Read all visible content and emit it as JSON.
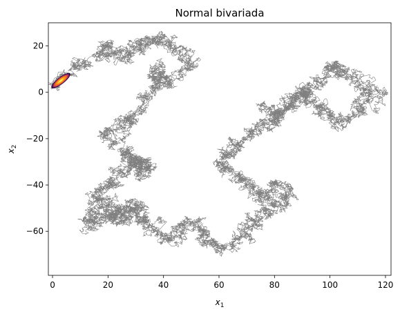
{
  "chart_data": {
    "type": "line",
    "title": "Normal bivariada",
    "xlabel": {
      "main": "x",
      "subscript": "1"
    },
    "ylabel": {
      "main": "x",
      "subscript": "2"
    },
    "xlim": [
      -1.5,
      122
    ],
    "ylim": [
      -79,
      30
    ],
    "xticks": [
      0,
      20,
      40,
      60,
      80,
      100,
      120
    ],
    "yticks": [
      20,
      0,
      -20,
      -40,
      -60
    ],
    "xtick_labels": [
      "0",
      "20",
      "40",
      "60",
      "80",
      "100",
      "120"
    ],
    "ytick_labels": [
      "20",
      "0",
      "−20",
      "−40",
      "−60"
    ],
    "grid": false,
    "line_color": "#808080",
    "series": [
      {
        "description_free": true,
        "x": [
          0,
          2,
          4,
          7,
          9,
          12,
          16,
          18,
          20,
          21,
          23,
          25,
          26,
          28,
          30,
          32,
          33,
          36,
          38,
          40,
          42,
          44,
          46,
          48,
          50,
          48,
          44,
          40,
          36,
          37,
          40,
          41,
          39,
          37,
          35,
          33,
          30,
          28,
          27,
          25,
          23,
          22,
          21,
          23,
          25,
          27,
          28,
          29,
          30,
          32,
          33,
          35,
          34,
          33,
          31,
          29,
          27,
          25,
          24,
          22,
          20,
          18,
          16,
          18,
          20,
          22,
          24,
          25,
          24,
          22,
          20,
          18,
          16,
          14,
          12,
          15,
          18,
          21,
          24,
          26,
          28,
          30,
          32,
          31,
          30,
          32,
          34,
          36,
          38,
          40,
          42,
          44,
          46,
          48,
          50,
          52,
          54,
          56,
          58,
          60,
          62,
          64,
          66,
          68,
          70,
          72,
          74,
          76,
          78,
          80,
          82,
          84,
          86,
          84,
          82,
          80,
          78,
          76,
          74,
          72,
          70,
          68,
          66,
          64,
          62,
          60,
          62,
          64,
          66,
          68,
          70,
          72,
          74,
          76,
          78,
          80,
          82,
          84,
          86,
          88,
          90,
          92,
          94,
          96,
          98,
          100,
          102,
          104,
          106,
          108,
          110,
          112,
          114,
          116,
          114,
          112,
          110,
          108,
          106,
          104,
          102,
          100,
          98,
          96,
          94,
          92,
          90,
          88,
          86,
          84,
          82,
          80,
          78,
          76
        ],
        "y": [
          2,
          4,
          6,
          9,
          11,
          13,
          15,
          17,
          19,
          20,
          19,
          17,
          15,
          17,
          19,
          21,
          22,
          23,
          24,
          23,
          21,
          19,
          17,
          14,
          12,
          8,
          5,
          3,
          6,
          9,
          11,
          7,
          4,
          1,
          -2,
          -5,
          -8,
          -10,
          -12,
          -14,
          -16,
          -18,
          -20,
          -22,
          -24,
          -26,
          -28,
          -30,
          -32,
          -34,
          -36,
          -34,
          -32,
          -30,
          -28,
          -30,
          -32,
          -34,
          -36,
          -38,
          -40,
          -42,
          -44,
          -46,
          -48,
          -50,
          -52,
          -54,
          -56,
          -55,
          -54,
          -53,
          -52,
          -54,
          -56,
          -57,
          -55,
          -53,
          -52,
          -51,
          -50,
          -49,
          -48,
          -50,
          -52,
          -54,
          -56,
          -58,
          -60,
          -62,
          -64,
          -62,
          -60,
          -58,
          -56,
          -58,
          -60,
          -62,
          -64,
          -66,
          -68,
          -66,
          -64,
          -62,
          -60,
          -58,
          -56,
          -54,
          -52,
          -50,
          -48,
          -46,
          -44,
          -42,
          -40,
          -42,
          -44,
          -46,
          -44,
          -42,
          -40,
          -38,
          -36,
          -34,
          -32,
          -30,
          -28,
          -26,
          -24,
          -22,
          -20,
          -18,
          -16,
          -14,
          -12,
          -10,
          -8,
          -6,
          -4,
          -2,
          0,
          2,
          4,
          6,
          8,
          10,
          12,
          10,
          8,
          6,
          4,
          2,
          0,
          -2,
          -4,
          -6,
          -8,
          -10,
          -12,
          -14,
          -12,
          -10,
          -8,
          -6,
          -4,
          -2,
          0,
          -2,
          -4,
          -6,
          -8,
          -10,
          -8,
          -6
        ]
      }
    ],
    "overlay": {
      "type": "density-ellipse",
      "center": [
        3,
        5
      ],
      "colormap": "inferno"
    }
  }
}
